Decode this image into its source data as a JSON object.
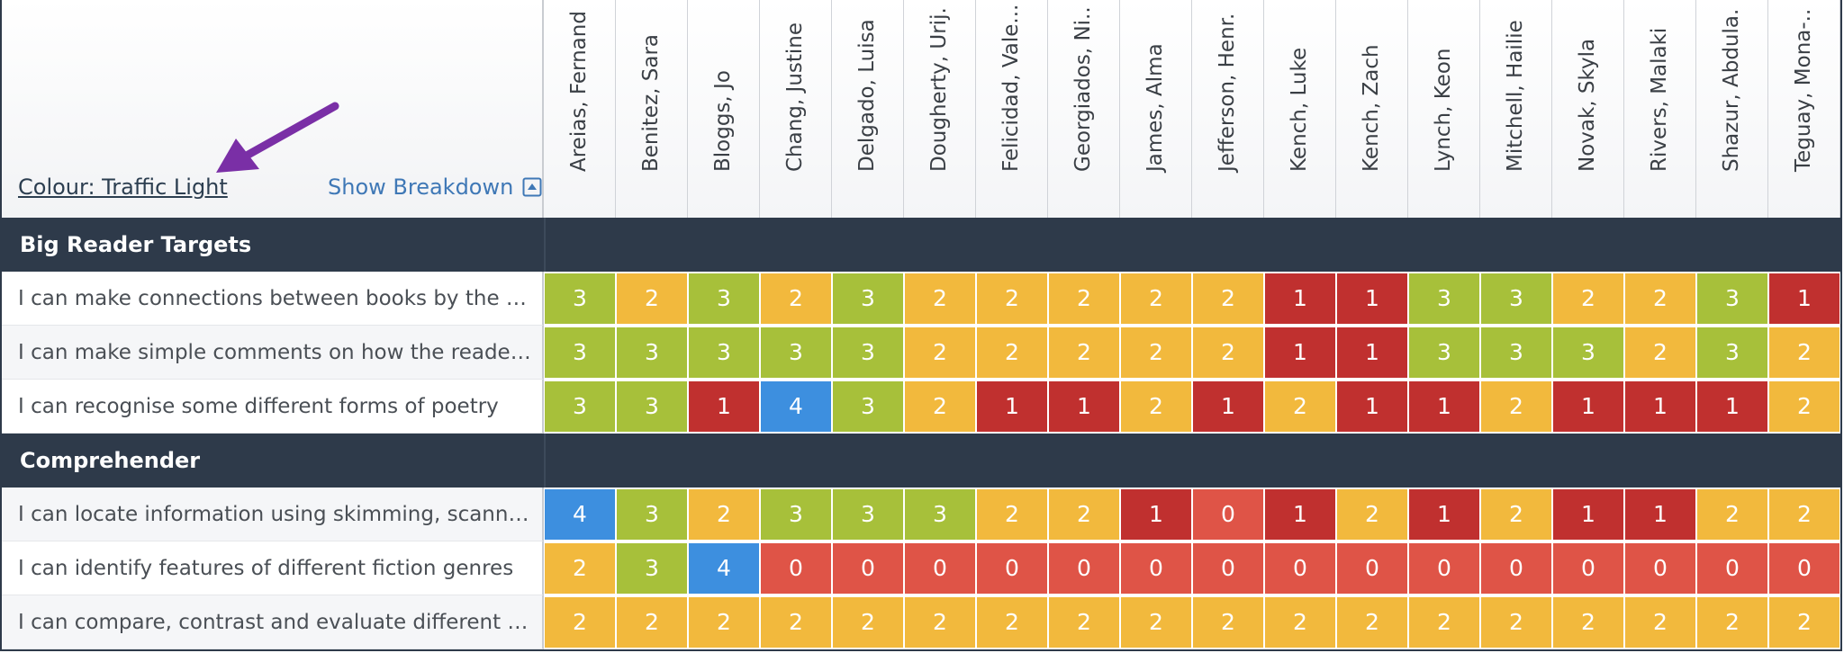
{
  "controls": {
    "colour_label": "Colour: Traffic Light",
    "breakdown_label": "Show Breakdown",
    "breakdown_icon": "expand-up-icon",
    "annotation": "purple-arrow"
  },
  "pupils": [
    "Areias, Fernand",
    "Benitez, Sara",
    "Bloggs, Jo",
    "Chang, Justine",
    "Delgado, Luisa",
    "Dougherty, Urij.",
    "Felicidad, Vale...",
    "Georgiados, Ni..",
    "James, Alma",
    "Jefferson, Henr.",
    "Kench, Luke",
    "Kench, Zach",
    "Lynch, Keon",
    "Mitchell, Hailie",
    "Novak, Skyla",
    "Rivers, Malaki",
    "Shazur, Abdula.",
    "Teguay, Mona-.."
  ],
  "grade_colors": {
    "0": "#df5447",
    "1": "#c0302f",
    "2": "#f2b93d",
    "3": "#a7c03a",
    "4": "#3d8fdf"
  },
  "sections": [
    {
      "title": "Big Reader Targets",
      "rows": [
        {
          "label": "I can make connections between books by the s...",
          "scores": [
            3,
            2,
            3,
            2,
            3,
            2,
            2,
            2,
            2,
            2,
            1,
            1,
            3,
            3,
            2,
            2,
            3,
            1
          ]
        },
        {
          "label": "I can make simple comments on how the reader...",
          "scores": [
            3,
            3,
            3,
            3,
            3,
            2,
            2,
            2,
            2,
            2,
            1,
            1,
            3,
            3,
            3,
            2,
            3,
            2
          ]
        },
        {
          "label": "I can recognise some different forms of poetry",
          "scores": [
            3,
            3,
            1,
            4,
            3,
            2,
            1,
            1,
            2,
            1,
            2,
            1,
            1,
            2,
            1,
            1,
            1,
            2
          ]
        }
      ]
    },
    {
      "title": "Comprehender",
      "rows": [
        {
          "label": "I can locate information using skimming, scanni...",
          "scores": [
            4,
            3,
            2,
            3,
            3,
            3,
            2,
            2,
            1,
            0,
            1,
            2,
            1,
            2,
            1,
            1,
            2,
            2
          ]
        },
        {
          "label": "I can identify features of different fiction genres",
          "scores": [
            2,
            3,
            4,
            0,
            0,
            0,
            0,
            0,
            0,
            0,
            0,
            0,
            0,
            0,
            0,
            0,
            0,
            0
          ]
        },
        {
          "label": "I can compare, contrast and evaluate different n...",
          "scores": [
            2,
            2,
            2,
            2,
            2,
            2,
            2,
            2,
            2,
            2,
            2,
            2,
            2,
            2,
            2,
            2,
            2,
            2
          ]
        }
      ]
    }
  ]
}
